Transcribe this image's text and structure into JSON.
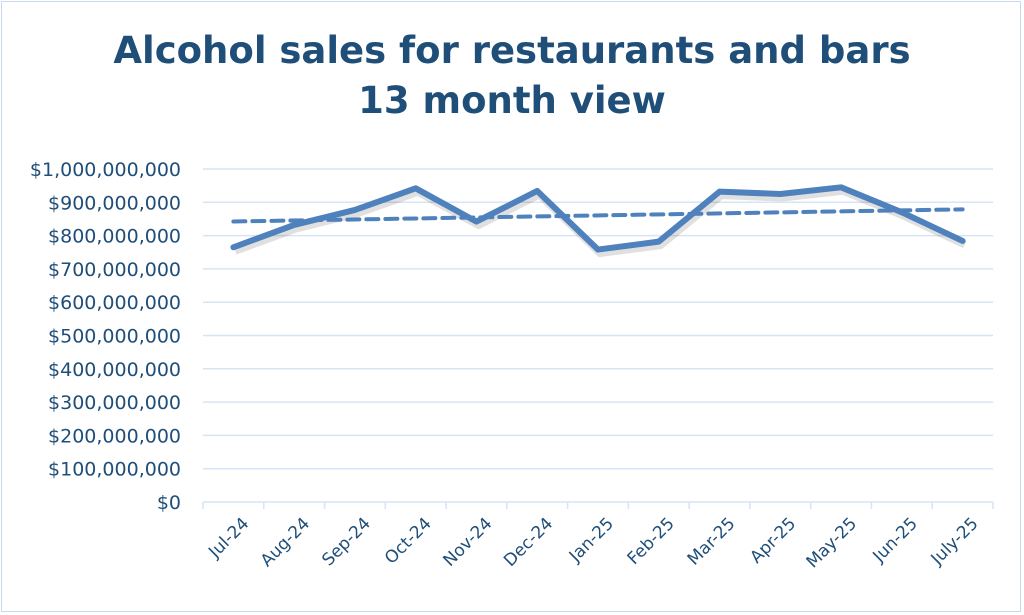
{
  "chart_data": {
    "type": "line",
    "title": "Alcohol sales for restaurants and bars",
    "subtitle": "13 month view",
    "xlabel": "",
    "ylabel": "",
    "categories": [
      "Jul-24",
      "Aug-24",
      "Sep-24",
      "Oct-24",
      "Nov-24",
      "Dec-24",
      "Jan-25",
      "Feb-25",
      "Mar-25",
      "Apr-25",
      "May-25",
      "Jun-25",
      "July-25"
    ],
    "series": [
      {
        "values": [
          765000000,
          832000000,
          877000000,
          942000000,
          842000000,
          934000000,
          758000000,
          782000000,
          932000000,
          925000000,
          945000000,
          870000000,
          784000000
        ]
      }
    ],
    "trendline": {
      "type": "linear",
      "style": "dashed"
    },
    "ylim": [
      0,
      1000000000
    ],
    "yticks": [
      "$0",
      "$100,000,000",
      "$200,000,000",
      "$300,000,000",
      "$400,000,000",
      "$500,000,000",
      "$600,000,000",
      "$700,000,000",
      "$800,000,000",
      "$900,000,000",
      "$1,000,000,000"
    ],
    "grid": true,
    "legend": "none",
    "colors": {
      "line": "#4f81bd",
      "title": "#1f4e79",
      "grid": "#d6e4f5"
    }
  }
}
